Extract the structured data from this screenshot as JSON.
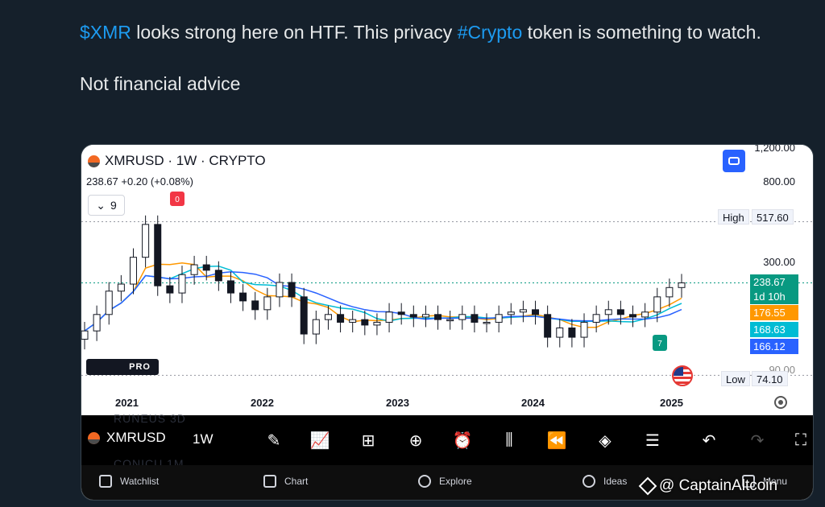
{
  "tweet": {
    "cashtag": "$XMR",
    "text_part1": " looks strong here on HTF. This privacy ",
    "hashtag": "#Crypto",
    "text_part2": " token is something to watch.",
    "line2": "Not financial advice"
  },
  "chart_header": {
    "symbol_line": "XMRUSD · 1W · CRYPTO",
    "price_line": "238.67  +0.20 (+0.08%)",
    "indicator_count": "9",
    "indicator_chevron": "chevron-down-icon",
    "tv_badge": "PRO"
  },
  "chart_data": {
    "type": "candlestick",
    "symbol": "XMRUSD",
    "interval": "1W",
    "exchange": "CRYPTO",
    "x_ticks": [
      "2021",
      "2022",
      "2023",
      "2024",
      "2025"
    ],
    "y_ticks": [
      "1,200.00",
      "800.00",
      "300.00",
      "90.00"
    ],
    "price_tags": {
      "high": {
        "label": "High",
        "value": "517.60"
      },
      "low": {
        "label": "Low",
        "value": "74.10"
      },
      "last": {
        "value": "238.67",
        "countdown": "1d 10h",
        "color": "#089981"
      },
      "ma1": {
        "value": "176.55",
        "color": "#ff9800"
      },
      "ma2": {
        "value": "168.63",
        "color": "#00bcd4"
      },
      "ma3": {
        "value": "166.12",
        "color": "#2962ff"
      }
    },
    "markers": {
      "top": "0",
      "bottom": "7"
    },
    "series_close": [
      {
        "x": "2020-12",
        "y": 130
      },
      {
        "x": "2021-01",
        "y": 160
      },
      {
        "x": "2021-02",
        "y": 215
      },
      {
        "x": "2021-03",
        "y": 235
      },
      {
        "x": "2021-04",
        "y": 330
      },
      {
        "x": "2021-05",
        "y": 500
      },
      {
        "x": "2021-06",
        "y": 230
      },
      {
        "x": "2021-07",
        "y": 210
      },
      {
        "x": "2021-08",
        "y": 265
      },
      {
        "x": "2021-09",
        "y": 300
      },
      {
        "x": "2021-10",
        "y": 280
      },
      {
        "x": "2021-11",
        "y": 245
      },
      {
        "x": "2021-12",
        "y": 210
      },
      {
        "x": "2022-01",
        "y": 190
      },
      {
        "x": "2022-02",
        "y": 170
      },
      {
        "x": "2022-03",
        "y": 200
      },
      {
        "x": "2022-04",
        "y": 240
      },
      {
        "x": "2022-05",
        "y": 200
      },
      {
        "x": "2022-06",
        "y": 125
      },
      {
        "x": "2022-07",
        "y": 150
      },
      {
        "x": "2022-08",
        "y": 160
      },
      {
        "x": "2022-09",
        "y": 145
      },
      {
        "x": "2022-10",
        "y": 150
      },
      {
        "x": "2022-11",
        "y": 140
      },
      {
        "x": "2022-12",
        "y": 145
      },
      {
        "x": "2023-01",
        "y": 165
      },
      {
        "x": "2023-02",
        "y": 160
      },
      {
        "x": "2023-03",
        "y": 155
      },
      {
        "x": "2023-04",
        "y": 160
      },
      {
        "x": "2023-05",
        "y": 150
      },
      {
        "x": "2023-06",
        "y": 150
      },
      {
        "x": "2023-07",
        "y": 160
      },
      {
        "x": "2023-08",
        "y": 145
      },
      {
        "x": "2023-09",
        "y": 145
      },
      {
        "x": "2023-10",
        "y": 160
      },
      {
        "x": "2023-11",
        "y": 165
      },
      {
        "x": "2023-12",
        "y": 170
      },
      {
        "x": "2024-01",
        "y": 160
      },
      {
        "x": "2024-02",
        "y": 120
      },
      {
        "x": "2024-03",
        "y": 135
      },
      {
        "x": "2024-04",
        "y": 120
      },
      {
        "x": "2024-05",
        "y": 145
      },
      {
        "x": "2024-06",
        "y": 160
      },
      {
        "x": "2024-07",
        "y": 170
      },
      {
        "x": "2024-08",
        "y": 160
      },
      {
        "x": "2024-09",
        "y": 155
      },
      {
        "x": "2024-10",
        "y": 165
      },
      {
        "x": "2024-11",
        "y": 200
      },
      {
        "x": "2024-12",
        "y": 225
      },
      {
        "x": "2025-01",
        "y": 238.67
      }
    ]
  },
  "toolbar": {
    "symbol": "XMRUSD",
    "interval": "1W",
    "ghost_top": "RUNEUS  3D",
    "ghost_bottom": "CONICU  1M",
    "icons": [
      "pencil-icon",
      "indicators-icon",
      "grid-icon",
      "plus-circle-icon",
      "alarm-icon",
      "candles-icon",
      "replay-icon",
      "layers-icon",
      "settings-sliders-icon",
      "undo-icon",
      "redo-icon",
      "fullscreen-icon"
    ]
  },
  "bottom_nav": {
    "watchlist": "Watchlist",
    "chart": "Chart",
    "explore": "Explore",
    "ideas": "Ideas",
    "menu": "Menu"
  },
  "watermark": "@ CaptainAltcoin",
  "colors": {
    "bg": "#15202b",
    "link": "#1d9bf0",
    "up": "#089981",
    "ma_orange": "#ff9800",
    "ma_cyan": "#00bcd4",
    "ma_blue": "#2962ff"
  }
}
